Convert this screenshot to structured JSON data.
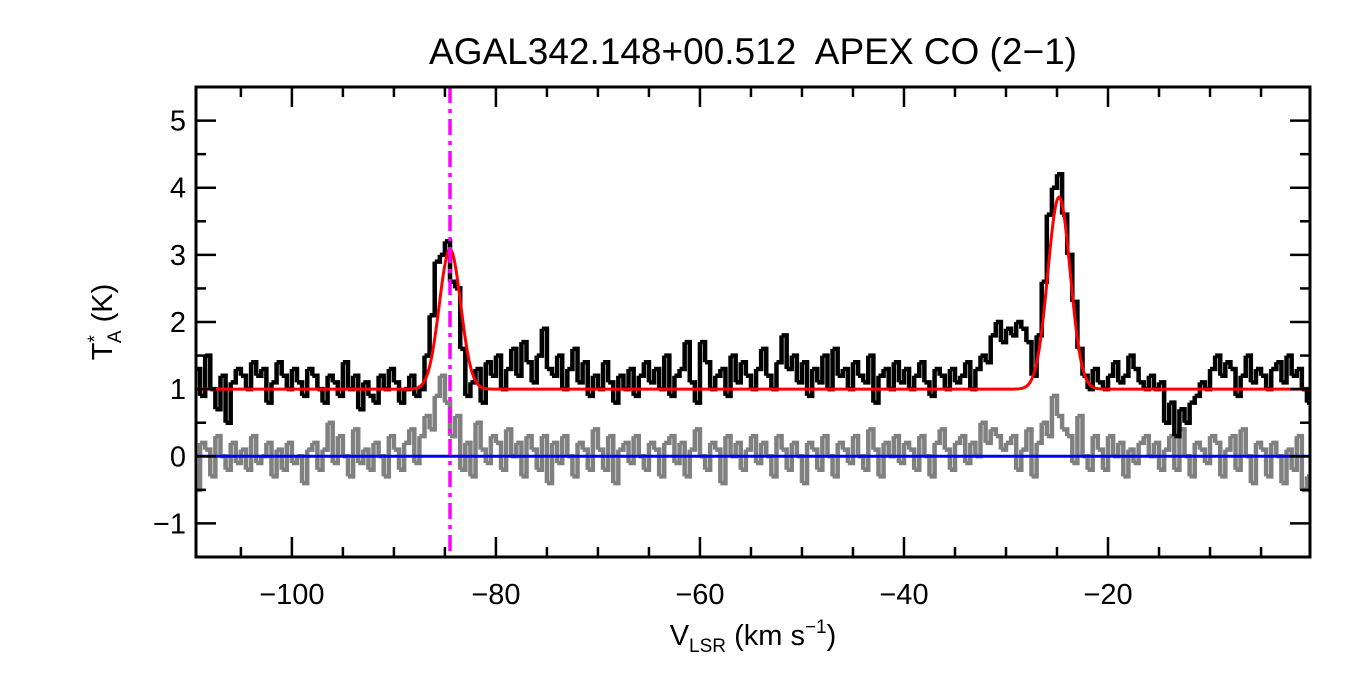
{
  "chart_data": {
    "type": "line",
    "title": "AGAL342.148+00.512  APEX CO (2−1)",
    "xlabel": {
      "main": "V",
      "sub": "LSR",
      "unit_pre": " (km s",
      "sup": "−1",
      "unit_post": ")"
    },
    "ylabel": {
      "main": "T",
      "sup": "*",
      "sub": "A",
      "unit": " (K)"
    },
    "xlim": [
      -109.4,
      -0.2
    ],
    "ylim": [
      -1.5,
      5.5
    ],
    "xticks": [
      -100,
      -80,
      -60,
      -40,
      -20
    ],
    "xtick_labels": [
      "−100",
      "−80",
      "−60",
      "−40",
      "−20"
    ],
    "yticks": [
      -1,
      0,
      1,
      2,
      3,
      4,
      5
    ],
    "ytick_labels": [
      "−1",
      "0",
      "1",
      "2",
      "3",
      "4",
      "5"
    ],
    "x_minor_step": 5,
    "y_minor_step": 0.5,
    "grid": false,
    "x_start": -109.25,
    "x_step": 0.5,
    "series": [
      {
        "role": "spectrum",
        "style": "histogram",
        "color": "#000000",
        "values": [
          1.3,
          0.9,
          1.5,
          1.0,
          0.7,
          1.2,
          0.5,
          1.1,
          1.3,
          1.2,
          1.0,
          1.4,
          1.2,
          1.3,
          0.8,
          1.1,
          1.4,
          1.2,
          1.0,
          1.3,
          1.1,
          0.9,
          1.3,
          1.2,
          1.0,
          0.8,
          1.2,
          1.1,
          0.9,
          1.4,
          1.0,
          1.2,
          0.7,
          1.1,
          0.9,
          0.8,
          1.2,
          1.0,
          1.3,
          1.1,
          0.8,
          1.0,
          1.2,
          0.9,
          1.0,
          1.5,
          2.1,
          2.9,
          3.0,
          3.2,
          2.6,
          2.5,
          1.6,
          0.9,
          1.1,
          1.3,
          0.8,
          1.4,
          1.2,
          1.5,
          1.0,
          1.3,
          1.6,
          1.2,
          1.7,
          1.4,
          1.1,
          1.5,
          1.9,
          1.3,
          1.2,
          1.5,
          1.0,
          1.3,
          1.6,
          1.1,
          1.4,
          0.9,
          1.2,
          1.0,
          1.4,
          1.1,
          0.8,
          1.2,
          1.0,
          1.3,
          0.9,
          1.2,
          1.4,
          1.1,
          1.3,
          1.0,
          1.5,
          0.9,
          1.2,
          1.3,
          1.7,
          1.1,
          0.8,
          1.7,
          1.4,
          1.0,
          1.2,
          1.3,
          0.9,
          1.5,
          1.1,
          1.4,
          1.2,
          1.0,
          1.3,
          1.6,
          1.2,
          1.0,
          1.4,
          1.8,
          1.3,
          1.5,
          1.1,
          1.4,
          0.9,
          1.3,
          1.1,
          1.5,
          1.0,
          1.6,
          1.2,
          1.3,
          1.0,
          1.4,
          1.2,
          1.1,
          1.5,
          0.8,
          1.2,
          1.3,
          1.0,
          1.4,
          1.1,
          1.3,
          1.0,
          1.2,
          1.4,
          1.1,
          0.9,
          1.3,
          1.2,
          1.0,
          1.3,
          1.1,
          1.2,
          1.4,
          1.0,
          1.3,
          1.5,
          1.4,
          1.8,
          2.0,
          1.7,
          1.9,
          1.8,
          2.0,
          1.9,
          1.7,
          1.2,
          1.8,
          2.6,
          3.6,
          4.0,
          4.2,
          3.6,
          3.0,
          2.3,
          1.6,
          1.2,
          1.0,
          1.3,
          1.1,
          1.0,
          1.2,
          1.4,
          1.1,
          1.2,
          1.5,
          1.3,
          1.1,
          1.0,
          1.2,
          1.0,
          1.1,
          0.5,
          0.8,
          0.3,
          0.7,
          0.5,
          0.8,
          0.9,
          1.1,
          1.0,
          1.3,
          1.5,
          1.2,
          1.4,
          1.3,
          0.9,
          1.2,
          1.5,
          1.1,
          1.3,
          1.2,
          1.0,
          1.3,
          1.4,
          1.1,
          1.5,
          1.2,
          1.3,
          1.0,
          0.8
        ]
      },
      {
        "role": "secondary-spectrum",
        "style": "histogram",
        "color": "#808080",
        "values": [
          -0.5,
          0.2,
          0.1,
          -0.3,
          0.3,
          0.0,
          -0.2,
          0.2,
          -0.1,
          0.1,
          -0.2,
          0.3,
          -0.1,
          0.0,
          0.2,
          -0.3,
          0.1,
          -0.2,
          0.2,
          -0.1,
          0.0,
          -0.4,
          0.1,
          0.2,
          -0.2,
          0.1,
          0.5,
          -0.1,
          0.3,
          0.0,
          -0.3,
          0.4,
          -0.1,
          0.1,
          -0.2,
          0.2,
          0.0,
          -0.3,
          0.3,
          0.1,
          -0.2,
          0.2,
          0.4,
          -0.1,
          0.3,
          0.6,
          0.4,
          0.9,
          1.2,
          0.8,
          0.3,
          0.6,
          -0.2,
          0.2,
          -0.3,
          0.5,
          0.1,
          -0.1,
          0.3,
          0.2,
          -0.2,
          0.4,
          0.0,
          0.2,
          -0.3,
          0.3,
          0.1,
          -0.2,
          0.3,
          -0.4,
          0.2,
          -0.1,
          0.3,
          0.0,
          -0.3,
          0.2,
          0.1,
          -0.2,
          0.4,
          0.1,
          -0.2,
          0.3,
          -0.4,
          0.1,
          0.2,
          -0.1,
          0.3,
          0.0,
          -0.2,
          0.2,
          0.1,
          -0.3,
          0.2,
          0.3,
          -0.1,
          0.2,
          -0.3,
          0.1,
          0.4,
          0.0,
          -0.2,
          0.2,
          0.1,
          -0.4,
          0.3,
          0.0,
          0.2,
          -0.2,
          0.1,
          0.3,
          -0.1,
          0.2,
          0.0,
          -0.3,
          0.3,
          0.1,
          -0.2,
          0.2,
          0.0,
          -0.4,
          0.2,
          0.1,
          -0.2,
          0.3,
          0.0,
          -0.3,
          0.2,
          0.1,
          -0.1,
          0.3,
          0.0,
          -0.2,
          0.4,
          0.1,
          -0.3,
          0.2,
          0.0,
          0.3,
          -0.1,
          0.2,
          0.1,
          -0.2,
          0.3,
          0.0,
          -0.3,
          0.2,
          0.4,
          0.1,
          -0.2,
          0.2,
          0.3,
          -0.1,
          0.2,
          0.0,
          0.5,
          0.2,
          0.4,
          0.3,
          0.1,
          0.2,
          0.3,
          -0.2,
          0.1,
          0.4,
          -0.3,
          0.2,
          0.5,
          0.3,
          0.9,
          0.6,
          0.4,
          0.3,
          -0.1,
          0.6,
          0.0,
          -0.2,
          0.3,
          0.1,
          -0.2,
          0.3,
          0.0,
          0.2,
          -0.3,
          0.1,
          -0.1,
          0.2,
          0.3,
          0.0,
          0.2,
          -0.2,
          0.1,
          0.3,
          -0.2,
          0.4,
          0.0,
          -0.3,
          0.2,
          0.1,
          -0.1,
          0.3,
          0.2,
          -0.3,
          0.1,
          0.3,
          -0.2,
          0.4,
          0.0,
          -0.4,
          0.2,
          0.1,
          -0.3,
          0.2,
          0.0,
          -0.4,
          0.1,
          -0.2,
          0.3,
          -0.5,
          -0.3
        ]
      }
    ],
    "fit": {
      "color": "#ff0000",
      "baseline": 1.0,
      "components": [
        {
          "center": -84.5,
          "amplitude": 2.08,
          "sigma": 1.05
        },
        {
          "center": -24.8,
          "amplitude": 2.86,
          "sigma": 1.1
        }
      ]
    },
    "zero_line": {
      "value": 0,
      "color": "#0000ff"
    },
    "marker_line": {
      "x": -84.5,
      "color": "#ff00ff",
      "style": "dash-dot"
    }
  }
}
